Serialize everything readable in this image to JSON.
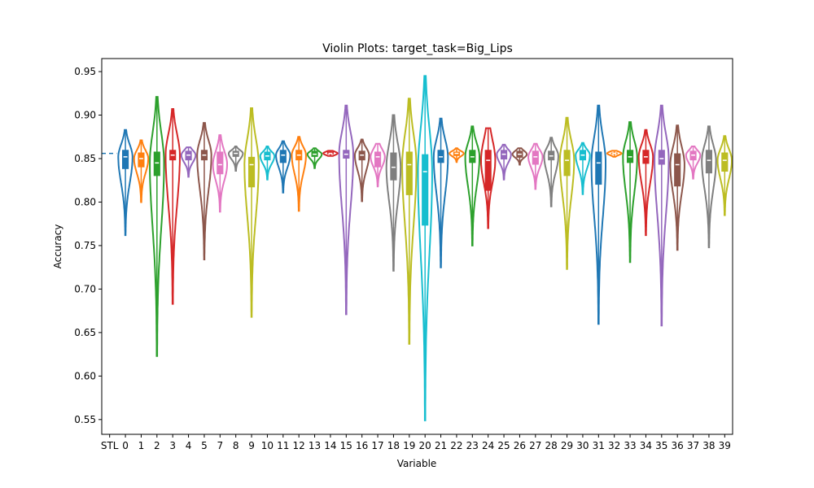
{
  "chart_data": {
    "type": "violin",
    "title": "Violin Plots: target_task=Big_Lips",
    "xlabel": "Variable",
    "ylabel": "Accuracy",
    "ylim": [
      0.533,
      0.965
    ],
    "yticks": [
      "0.55",
      "0.60",
      "0.65",
      "0.70",
      "0.75",
      "0.80",
      "0.85",
      "0.90",
      "0.95"
    ],
    "categories": [
      "STL",
      "0",
      "1",
      "2",
      "3",
      "4",
      "5",
      "7",
      "8",
      "9",
      "10",
      "11",
      "12",
      "13",
      "14",
      "15",
      "16",
      "17",
      "18",
      "19",
      "20",
      "21",
      "22",
      "23",
      "24",
      "25",
      "26",
      "27",
      "28",
      "29",
      "30",
      "31",
      "32",
      "33",
      "34",
      "35",
      "36",
      "37",
      "38",
      "39"
    ],
    "stl_reference": 0.856,
    "palette": [
      "#1f77b4",
      "#ff7f0e",
      "#2ca02c",
      "#d62728",
      "#9467bd",
      "#8c564b",
      "#e377c2",
      "#7f7f7f",
      "#bcbd22",
      "#17becf"
    ],
    "violins": [
      {
        "label": "0",
        "min": 0.762,
        "max": 0.883,
        "q1": 0.838,
        "median": 0.852,
        "q3": 0.86
      },
      {
        "label": "1",
        "min": 0.8,
        "max": 0.871,
        "q1": 0.84,
        "median": 0.85,
        "q3": 0.857
      },
      {
        "label": "2",
        "min": 0.623,
        "max": 0.921,
        "q1": 0.83,
        "median": 0.845,
        "q3": 0.858
      },
      {
        "label": "3",
        "min": 0.683,
        "max": 0.907,
        "q1": 0.848,
        "median": 0.854,
        "q3": 0.86
      },
      {
        "label": "4",
        "min": 0.829,
        "max": 0.863,
        "q1": 0.848,
        "median": 0.854,
        "q3": 0.859
      },
      {
        "label": "5",
        "min": 0.734,
        "max": 0.891,
        "q1": 0.848,
        "median": 0.854,
        "q3": 0.86
      },
      {
        "label": "7",
        "min": 0.789,
        "max": 0.877,
        "q1": 0.832,
        "median": 0.843,
        "q3": 0.858
      },
      {
        "label": "8",
        "min": 0.836,
        "max": 0.864,
        "q1": 0.852,
        "median": 0.856,
        "q3": 0.859
      },
      {
        "label": "9",
        "min": 0.668,
        "max": 0.908,
        "q1": 0.817,
        "median": 0.843,
        "q3": 0.852
      },
      {
        "label": "10",
        "min": 0.826,
        "max": 0.864,
        "q1": 0.848,
        "median": 0.853,
        "q3": 0.858
      },
      {
        "label": "11",
        "min": 0.811,
        "max": 0.87,
        "q1": 0.845,
        "median": 0.854,
        "q3": 0.86
      },
      {
        "label": "12",
        "min": 0.79,
        "max": 0.875,
        "q1": 0.848,
        "median": 0.854,
        "q3": 0.86
      },
      {
        "label": "13",
        "min": 0.839,
        "max": 0.862,
        "q1": 0.852,
        "median": 0.855,
        "q3": 0.859
      },
      {
        "label": "14",
        "min": 0.853,
        "max": 0.859,
        "q1": 0.855,
        "median": 0.856,
        "q3": 0.858
      },
      {
        "label": "15",
        "min": 0.671,
        "max": 0.911,
        "q1": 0.85,
        "median": 0.855,
        "q3": 0.86
      },
      {
        "label": "16",
        "min": 0.801,
        "max": 0.872,
        "q1": 0.848,
        "median": 0.854,
        "q3": 0.859
      },
      {
        "label": "17",
        "min": 0.818,
        "max": 0.867,
        "q1": 0.84,
        "median": 0.852,
        "q3": 0.858
      },
      {
        "label": "18",
        "min": 0.721,
        "max": 0.9,
        "q1": 0.825,
        "median": 0.84,
        "q3": 0.857
      },
      {
        "label": "19",
        "min": 0.637,
        "max": 0.919,
        "q1": 0.808,
        "median": 0.843,
        "q3": 0.858
      },
      {
        "label": "20",
        "min": 0.549,
        "max": 0.945,
        "q1": 0.773,
        "median": 0.835,
        "q3": 0.855
      },
      {
        "label": "21",
        "min": 0.725,
        "max": 0.896,
        "q1": 0.845,
        "median": 0.852,
        "q3": 0.86
      },
      {
        "label": "22",
        "min": 0.846,
        "max": 0.862,
        "q1": 0.853,
        "median": 0.856,
        "q3": 0.858
      },
      {
        "label": "23",
        "min": 0.75,
        "max": 0.887,
        "q1": 0.845,
        "median": 0.852,
        "q3": 0.86
      },
      {
        "label": "24",
        "min": 0.77,
        "max": 0.885,
        "q1": 0.813,
        "median": 0.848,
        "q3": 0.86
      },
      {
        "label": "25",
        "min": 0.826,
        "max": 0.866,
        "q1": 0.849,
        "median": 0.855,
        "q3": 0.86
      },
      {
        "label": "26",
        "min": 0.843,
        "max": 0.862,
        "q1": 0.851,
        "median": 0.855,
        "q3": 0.859
      },
      {
        "label": "27",
        "min": 0.815,
        "max": 0.867,
        "q1": 0.843,
        "median": 0.852,
        "q3": 0.859
      },
      {
        "label": "28",
        "min": 0.795,
        "max": 0.874,
        "q1": 0.848,
        "median": 0.853,
        "q3": 0.859
      },
      {
        "label": "29",
        "min": 0.723,
        "max": 0.897,
        "q1": 0.83,
        "median": 0.848,
        "q3": 0.86
      },
      {
        "label": "30",
        "min": 0.809,
        "max": 0.868,
        "q1": 0.848,
        "median": 0.854,
        "q3": 0.86
      },
      {
        "label": "31",
        "min": 0.66,
        "max": 0.911,
        "q1": 0.82,
        "median": 0.845,
        "q3": 0.858
      },
      {
        "label": "32",
        "min": 0.852,
        "max": 0.859,
        "q1": 0.855,
        "median": 0.856,
        "q3": 0.857
      },
      {
        "label": "33",
        "min": 0.731,
        "max": 0.892,
        "q1": 0.845,
        "median": 0.852,
        "q3": 0.86
      },
      {
        "label": "34",
        "min": 0.762,
        "max": 0.883,
        "q1": 0.844,
        "median": 0.852,
        "q3": 0.86
      },
      {
        "label": "35",
        "min": 0.658,
        "max": 0.911,
        "q1": 0.843,
        "median": 0.85,
        "q3": 0.86
      },
      {
        "label": "36",
        "min": 0.745,
        "max": 0.888,
        "q1": 0.818,
        "median": 0.843,
        "q3": 0.856
      },
      {
        "label": "37",
        "min": 0.827,
        "max": 0.864,
        "q1": 0.848,
        "median": 0.854,
        "q3": 0.859
      },
      {
        "label": "38",
        "min": 0.748,
        "max": 0.887,
        "q1": 0.833,
        "median": 0.848,
        "q3": 0.86
      },
      {
        "label": "39",
        "min": 0.785,
        "max": 0.876,
        "q1": 0.835,
        "median": 0.848,
        "q3": 0.857
      }
    ]
  }
}
